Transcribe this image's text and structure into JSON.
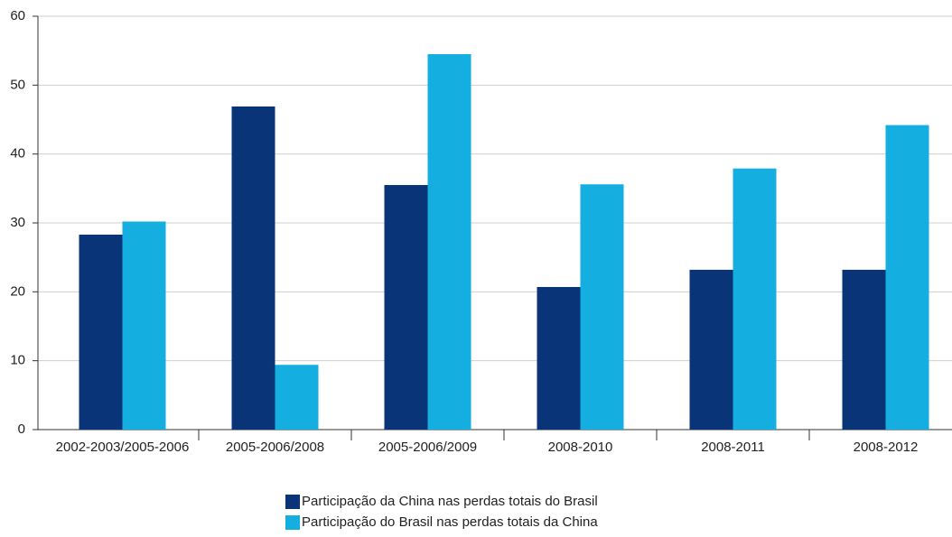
{
  "chart_data": {
    "type": "bar",
    "categories": [
      "2002-2003/2005-2006",
      "2005-2006/2008",
      "2005-2006/2009",
      "2008-2010",
      "2008-2011",
      "2008-2012"
    ],
    "series": [
      {
        "name": "Participação da China nas perdas totais do Brasil",
        "color": "#0a3478",
        "values": [
          28.3,
          46.9,
          35.5,
          20.7,
          23.2,
          23.2
        ]
      },
      {
        "name": "Participação  do Brasil nas perdas totais da China",
        "color": "#14aee0",
        "values": [
          30.2,
          9.4,
          54.5,
          35.6,
          37.9,
          44.2
        ]
      }
    ],
    "ylim": [
      0,
      60
    ],
    "yticks": [
      0,
      10,
      20,
      30,
      40,
      50,
      60
    ],
    "grid": true
  }
}
